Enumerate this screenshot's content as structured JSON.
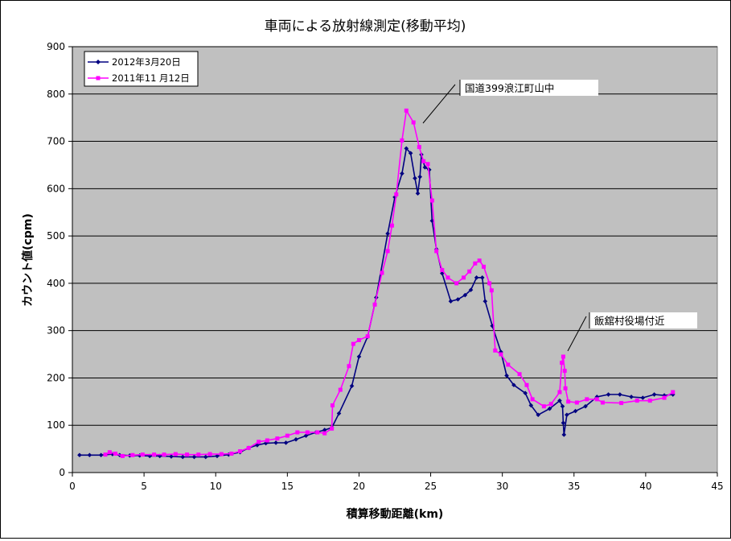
{
  "chart_data": {
    "type": "line",
    "title": "車両による放射線測定(移動平均)",
    "xlabel": "積算移動距離(km)",
    "ylabel": "カウント値(cpm)",
    "xlim": [
      0,
      45
    ],
    "ylim": [
      0,
      900
    ],
    "x_ticks": [
      0,
      5,
      10,
      15,
      20,
      25,
      30,
      35,
      40,
      45
    ],
    "y_ticks": [
      0,
      100,
      200,
      300,
      400,
      500,
      600,
      700,
      800,
      900
    ],
    "grid": "horizontal",
    "legend_position": "top-left",
    "colors": {
      "plot_background": "#c0c0c0"
    },
    "series": [
      {
        "name": "2012年3月20日",
        "color": "#000080",
        "marker": "diamond",
        "points": [
          [
            0.5,
            37
          ],
          [
            1.2,
            37
          ],
          [
            2.0,
            37
          ],
          [
            2.8,
            39
          ],
          [
            3.3,
            37
          ],
          [
            4.0,
            36
          ],
          [
            4.7,
            36
          ],
          [
            5.4,
            35
          ],
          [
            6.1,
            35
          ],
          [
            6.9,
            34
          ],
          [
            7.7,
            33
          ],
          [
            8.5,
            33
          ],
          [
            9.3,
            33
          ],
          [
            10.1,
            35
          ],
          [
            10.9,
            38
          ],
          [
            11.7,
            43
          ],
          [
            12.3,
            52
          ],
          [
            12.9,
            58
          ],
          [
            13.5,
            62
          ],
          [
            14.2,
            63
          ],
          [
            14.9,
            63
          ],
          [
            15.6,
            70
          ],
          [
            16.3,
            78
          ],
          [
            17.0,
            85
          ],
          [
            17.6,
            90
          ],
          [
            18.1,
            95
          ],
          [
            18.6,
            125
          ],
          [
            19.5,
            183
          ],
          [
            20.0,
            245
          ],
          [
            20.6,
            287
          ],
          [
            21.2,
            370
          ],
          [
            22.0,
            505
          ],
          [
            22.5,
            582
          ],
          [
            23.0,
            632
          ],
          [
            23.3,
            685
          ],
          [
            23.6,
            675
          ],
          [
            23.9,
            622
          ],
          [
            24.1,
            590
          ],
          [
            24.25,
            625
          ],
          [
            24.35,
            672
          ],
          [
            24.6,
            645
          ],
          [
            24.9,
            640
          ],
          [
            25.1,
            532
          ],
          [
            25.4,
            472
          ],
          [
            25.8,
            421
          ],
          [
            26.4,
            362
          ],
          [
            26.9,
            366
          ],
          [
            27.4,
            375
          ],
          [
            27.8,
            386
          ],
          [
            28.2,
            412
          ],
          [
            28.6,
            412
          ],
          [
            28.8,
            362
          ],
          [
            29.3,
            310
          ],
          [
            29.9,
            255
          ],
          [
            30.3,
            205
          ],
          [
            30.8,
            185
          ],
          [
            31.6,
            168
          ],
          [
            32.0,
            142
          ],
          [
            32.5,
            122
          ],
          [
            33.3,
            135
          ],
          [
            34.0,
            152
          ],
          [
            34.2,
            140
          ],
          [
            34.25,
            105
          ],
          [
            34.3,
            80
          ],
          [
            34.5,
            122
          ],
          [
            35.1,
            130
          ],
          [
            35.8,
            140
          ],
          [
            36.6,
            160
          ],
          [
            37.4,
            165
          ],
          [
            38.2,
            165
          ],
          [
            39.0,
            160
          ],
          [
            39.8,
            158
          ],
          [
            40.6,
            165
          ],
          [
            41.3,
            163
          ],
          [
            41.9,
            165
          ]
        ]
      },
      {
        "name": "2011年11 月12日",
        "color": "#ff00ff",
        "marker": "square",
        "points": [
          [
            2.3,
            38
          ],
          [
            2.6,
            43
          ],
          [
            3.0,
            40
          ],
          [
            3.5,
            35
          ],
          [
            4.2,
            37
          ],
          [
            4.9,
            38
          ],
          [
            5.7,
            38
          ],
          [
            6.4,
            38
          ],
          [
            7.2,
            39
          ],
          [
            8.0,
            38
          ],
          [
            8.8,
            38
          ],
          [
            9.6,
            39
          ],
          [
            10.4,
            39
          ],
          [
            11.1,
            40
          ],
          [
            11.7,
            45
          ],
          [
            12.3,
            52
          ],
          [
            13.0,
            65
          ],
          [
            13.6,
            68
          ],
          [
            14.3,
            72
          ],
          [
            15.0,
            78
          ],
          [
            15.7,
            85
          ],
          [
            16.4,
            85
          ],
          [
            17.1,
            85
          ],
          [
            17.6,
            83
          ],
          [
            18.1,
            93
          ],
          [
            18.15,
            142
          ],
          [
            18.7,
            175
          ],
          [
            19.3,
            225
          ],
          [
            19.6,
            272
          ],
          [
            20.0,
            280
          ],
          [
            20.6,
            288
          ],
          [
            21.1,
            355
          ],
          [
            21.6,
            422
          ],
          [
            22.0,
            468
          ],
          [
            22.3,
            522
          ],
          [
            22.6,
            588
          ],
          [
            23.0,
            702
          ],
          [
            23.3,
            765
          ],
          [
            23.8,
            740
          ],
          [
            24.2,
            688
          ],
          [
            24.5,
            658
          ],
          [
            24.8,
            652
          ],
          [
            25.1,
            575
          ],
          [
            25.4,
            468
          ],
          [
            25.8,
            428
          ],
          [
            26.2,
            412
          ],
          [
            26.8,
            400
          ],
          [
            27.3,
            412
          ],
          [
            27.7,
            425
          ],
          [
            28.1,
            442
          ],
          [
            28.4,
            448
          ],
          [
            28.7,
            435
          ],
          [
            29.1,
            400
          ],
          [
            29.25,
            385
          ],
          [
            29.5,
            258
          ],
          [
            29.9,
            250
          ],
          [
            30.4,
            228
          ],
          [
            31.2,
            208
          ],
          [
            31.7,
            185
          ],
          [
            32.1,
            155
          ],
          [
            32.9,
            140
          ],
          [
            33.4,
            145
          ],
          [
            34.0,
            170
          ],
          [
            34.15,
            232
          ],
          [
            34.25,
            245
          ],
          [
            34.35,
            215
          ],
          [
            34.4,
            178
          ],
          [
            34.6,
            150
          ],
          [
            35.2,
            148
          ],
          [
            35.9,
            155
          ],
          [
            36.6,
            155
          ],
          [
            37.0,
            148
          ],
          [
            38.3,
            147
          ],
          [
            39.4,
            152
          ],
          [
            40.3,
            152
          ],
          [
            41.3,
            158
          ],
          [
            41.9,
            170
          ]
        ]
      }
    ],
    "annotations": [
      {
        "text": "国道399浪江町山中",
        "x": 23.4,
        "y": 740
      },
      {
        "text": "飯舘村役場付近",
        "x": 34.2,
        "y": 255
      }
    ]
  }
}
